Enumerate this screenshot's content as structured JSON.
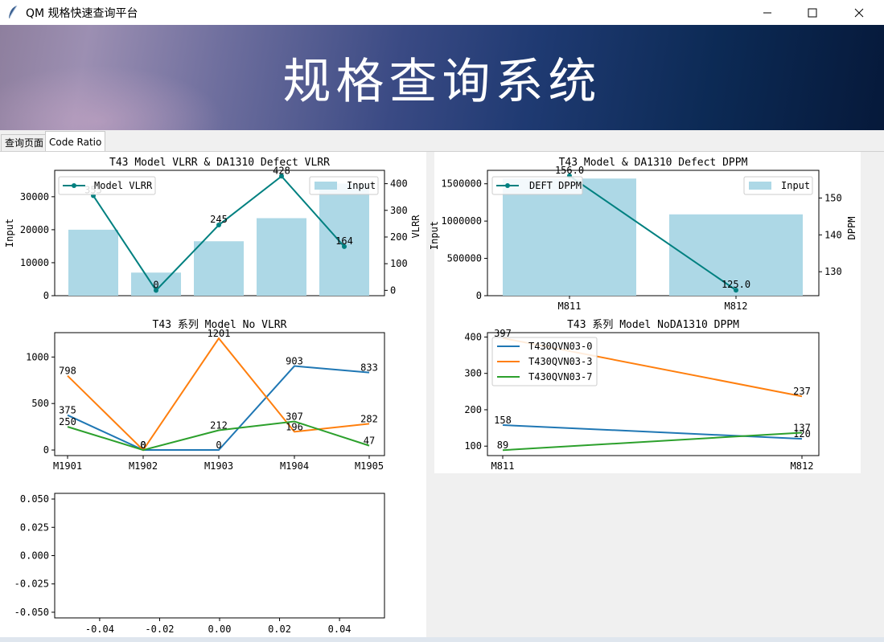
{
  "window": {
    "title": "QM 规格快速查询平台"
  },
  "banner": {
    "title": "规格查询系统"
  },
  "tabs": [
    {
      "label": "查询页面"
    },
    {
      "label": "Code Ratio"
    }
  ],
  "chart_data": [
    {
      "type": "bar",
      "title": "T43 Model VLRR & DA1310 Defect VLRR",
      "ylabel": "Input",
      "y2label": "VLRR",
      "categories": [
        "M1901",
        "M1902",
        "M1903",
        "M1904",
        "M1905"
      ],
      "bars": {
        "name": "Input",
        "values": [
          20000,
          7000,
          16500,
          23500,
          34000
        ],
        "color": "#add8e6"
      },
      "line": {
        "name": "Model VLRR",
        "values": [
          355,
          0,
          245,
          428,
          164
        ],
        "labels": [
          "355",
          "0",
          "245",
          "428",
          "164"
        ],
        "color": "#008080"
      },
      "ylim": [
        0,
        38000
      ],
      "y2lim": [
        -20,
        450
      ],
      "yticks": [
        0,
        10000,
        20000,
        30000
      ],
      "y2ticks": [
        0,
        100,
        200,
        300,
        400
      ]
    },
    {
      "type": "bar",
      "title": "T43 Model  & DA1310 Defect DPPM",
      "ylabel": "Input",
      "y2label": "DPPM",
      "categories": [
        "M811",
        "M812"
      ],
      "bars": {
        "name": "Input",
        "values": [
          1570000,
          1090000
        ],
        "color": "#add8e6"
      },
      "line": {
        "name": "DEFT DPPM",
        "values": [
          156.0,
          125.0
        ],
        "labels": [
          "156.0",
          "125.0"
        ],
        "color": "#008080"
      },
      "ylim": [
        0,
        1680000
      ],
      "y2lim": [
        123.5,
        157.5
      ],
      "yticks": [
        0,
        500000,
        1000000,
        1500000
      ],
      "y2ticks": [
        130,
        140,
        150
      ]
    },
    {
      "type": "line",
      "title": "T43 系列  Model No VLRR",
      "categories": [
        "M1901",
        "M1902",
        "M1903",
        "M1904",
        "M1905"
      ],
      "series": [
        {
          "values": [
            375,
            0,
            0,
            903,
            833
          ],
          "color": "#1f77b4"
        },
        {
          "values": [
            798,
            0,
            1201,
            196,
            282
          ],
          "color": "#ff7f0e"
        },
        {
          "values": [
            250,
            0,
            212,
            307,
            47
          ],
          "color": "#2ca02c"
        }
      ],
      "ylim": [
        -60,
        1262
      ],
      "yticks": [
        0,
        500,
        1000
      ]
    },
    {
      "type": "line",
      "title": "T43 系列  Model NoDA1310 DPPM",
      "categories": [
        "M811",
        "M812"
      ],
      "series": [
        {
          "name": "T430QVN03-0",
          "values": [
            158,
            120
          ],
          "color": "#1f77b4"
        },
        {
          "name": "T430QVN03-3",
          "values": [
            397,
            237
          ],
          "color": "#ff7f0e"
        },
        {
          "name": "T430QVN03-7",
          "values": [
            89,
            137
          ],
          "color": "#2ca02c"
        }
      ],
      "ylim": [
        74,
        412
      ],
      "yticks": [
        100,
        200,
        300,
        400
      ]
    },
    {
      "type": "line",
      "title": "",
      "series": [],
      "xlim": [
        -0.055,
        0.055
      ],
      "ylim": [
        -0.055,
        0.055
      ],
      "xticks": [
        "-0.04",
        "-0.02",
        "0.00",
        "0.02",
        "0.04"
      ],
      "yticks": [
        "0.050",
        "0.025",
        "0.000",
        "-0.025",
        "-0.050"
      ]
    }
  ]
}
